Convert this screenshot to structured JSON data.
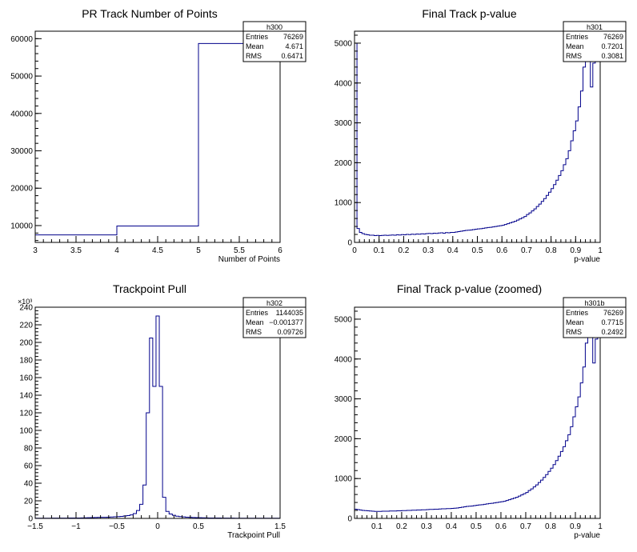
{
  "chart_data": [
    {
      "type": "histogram",
      "title": "PR Track Number of Points",
      "xlabel": "Number of Points",
      "ylabel": "",
      "xlim": [
        3,
        6
      ],
      "ylim": [
        5500,
        62000
      ],
      "xticks": [
        3,
        3.5,
        4,
        4.5,
        5,
        5.5,
        6
      ],
      "xtick_labels": [
        "3",
        "3.5",
        "4",
        "4.5",
        "5",
        "5.5",
        "6"
      ],
      "yticks": [
        10000,
        20000,
        30000,
        40000,
        50000,
        60000
      ],
      "ytick_labels": [
        "10000",
        "20000",
        "30000",
        "40000",
        "50000",
        "60000"
      ],
      "y_exponent_label": "",
      "bin_edges": [
        3,
        4,
        5,
        6
      ],
      "values": [
        7500,
        9900,
        58700
      ],
      "stats": {
        "name": "h300",
        "entries_label": "Entries",
        "entries": "76269",
        "mean_label": "Mean",
        "mean": "4.671",
        "rms_label": "RMS",
        "rms": "0.6471"
      },
      "color": "#00008b"
    },
    {
      "type": "histogram",
      "title": "Final Track p-value",
      "xlabel": "p-value",
      "ylabel": "",
      "xlim": [
        0,
        1
      ],
      "ylim": [
        0,
        5300
      ],
      "xticks": [
        0,
        0.1,
        0.2,
        0.3,
        0.4,
        0.5,
        0.6,
        0.7,
        0.8,
        0.9,
        1
      ],
      "xtick_labels": [
        "0",
        "0.1",
        "0.2",
        "0.3",
        "0.4",
        "0.5",
        "0.6",
        "0.7",
        "0.8",
        "0.9",
        "1"
      ],
      "yticks": [
        0,
        1000,
        2000,
        3000,
        4000,
        5000
      ],
      "ytick_labels": [
        "0",
        "1000",
        "2000",
        "3000",
        "4000",
        "5000"
      ],
      "y_exponent_label": "",
      "bin_edges": [
        0,
        0.01,
        0.02,
        0.03,
        0.04,
        0.05,
        0.06,
        0.07,
        0.08,
        0.09,
        0.1,
        0.11,
        0.12,
        0.13,
        0.14,
        0.15,
        0.16,
        0.17,
        0.18,
        0.19,
        0.2,
        0.21,
        0.22,
        0.23,
        0.24,
        0.25,
        0.26,
        0.27,
        0.28,
        0.29,
        0.3,
        0.31,
        0.32,
        0.33,
        0.34,
        0.35,
        0.36,
        0.37,
        0.38,
        0.39,
        0.4,
        0.41,
        0.42,
        0.43,
        0.44,
        0.45,
        0.46,
        0.47,
        0.48,
        0.49,
        0.5,
        0.51,
        0.52,
        0.53,
        0.54,
        0.55,
        0.56,
        0.57,
        0.58,
        0.59,
        0.6,
        0.61,
        0.62,
        0.63,
        0.64,
        0.65,
        0.66,
        0.67,
        0.68,
        0.69,
        0.7,
        0.71,
        0.72,
        0.73,
        0.74,
        0.75,
        0.76,
        0.77,
        0.78,
        0.79,
        0.8,
        0.81,
        0.82,
        0.83,
        0.84,
        0.85,
        0.86,
        0.87,
        0.88,
        0.89,
        0.9,
        0.91,
        0.92,
        0.93,
        0.94,
        0.95,
        0.96,
        0.97,
        0.98,
        0.99,
        1
      ],
      "values": [
        5000,
        350,
        250,
        220,
        200,
        190,
        180,
        180,
        170,
        175,
        170,
        175,
        180,
        175,
        180,
        185,
        180,
        190,
        185,
        195,
        190,
        200,
        195,
        205,
        200,
        210,
        205,
        215,
        210,
        220,
        225,
        220,
        230,
        225,
        235,
        240,
        230,
        245,
        240,
        250,
        250,
        260,
        270,
        280,
        290,
        300,
        305,
        310,
        320,
        330,
        340,
        345,
        355,
        365,
        375,
        380,
        390,
        400,
        410,
        420,
        430,
        450,
        470,
        490,
        510,
        530,
        560,
        590,
        620,
        650,
        700,
        740,
        790,
        840,
        900,
        960,
        1030,
        1100,
        1180,
        1260,
        1350,
        1450,
        1560,
        1680,
        1800,
        1950,
        2100,
        2300,
        2550,
        2800,
        3050,
        3400,
        3800,
        4400,
        5000,
        5300,
        3900,
        4500,
        5300,
        5300
      ],
      "stats": {
        "name": "h301",
        "entries_label": "Entries",
        "entries": "76269",
        "mean_label": "Mean",
        "mean": "0.7201",
        "rms_label": "RMS",
        "rms": "0.3081"
      },
      "color": "#00008b"
    },
    {
      "type": "histogram",
      "title": "Trackpoint Pull",
      "xlabel": "Trackpoint Pull",
      "ylabel": "",
      "xlim": [
        -1.5,
        1.5
      ],
      "ylim": [
        0,
        240000
      ],
      "xticks": [
        -1.5,
        -1,
        -0.5,
        0,
        0.5,
        1,
        1.5
      ],
      "xtick_labels": [
        "−1.5",
        "−1",
        "−0.5",
        "0",
        "0.5",
        "1",
        "1.5"
      ],
      "yticks": [
        0,
        20000,
        40000,
        60000,
        80000,
        100000,
        120000,
        140000,
        160000,
        180000,
        200000,
        220000,
        240000
      ],
      "ytick_labels": [
        "0",
        "20",
        "40",
        "60",
        "80",
        "100",
        "120",
        "140",
        "160",
        "180",
        "200",
        "220",
        "240"
      ],
      "y_exponent_label": "×10³",
      "bin_edges": [
        -1.5,
        -1.46,
        -1.42,
        -1.38,
        -1.34,
        -1.3,
        -1.26,
        -1.22,
        -1.18,
        -1.14,
        -1.1,
        -1.06,
        -1.02,
        -0.98,
        -0.94,
        -0.9,
        -0.86,
        -0.82,
        -0.78,
        -0.74,
        -0.7,
        -0.66,
        -0.62,
        -0.58,
        -0.54,
        -0.5,
        -0.46,
        -0.42,
        -0.38,
        -0.34,
        -0.3,
        -0.26,
        -0.22,
        -0.18,
        -0.14,
        -0.1,
        -0.06,
        -0.02,
        0.02,
        0.06,
        0.1,
        0.14,
        0.18,
        0.22,
        0.26,
        0.3,
        0.34,
        0.38,
        0.42,
        0.46,
        0.5,
        0.54,
        0.58,
        0.62,
        0.66,
        0.7,
        0.74,
        0.78,
        0.82,
        0.86,
        0.9,
        0.94,
        0.98,
        1.02,
        1.06,
        1.1,
        1.14,
        1.18,
        1.22,
        1.26,
        1.3,
        1.34,
        1.38,
        1.42,
        1.46,
        1.5
      ],
      "values": [
        200,
        200,
        200,
        200,
        200,
        300,
        300,
        300,
        300,
        300,
        400,
        400,
        500,
        500,
        600,
        700,
        800,
        900,
        1000,
        1100,
        1200,
        1300,
        1400,
        1600,
        1800,
        2000,
        2300,
        2700,
        3200,
        4000,
        5500,
        9000,
        16000,
        38000,
        120000,
        205000,
        150000,
        230000,
        150000,
        24000,
        8000,
        5000,
        3500,
        2500,
        2000,
        1700,
        1400,
        1200,
        1000,
        900,
        800,
        700,
        600,
        500,
        500,
        400,
        400,
        300,
        300,
        300,
        300,
        200,
        200,
        200,
        200,
        200,
        200,
        200,
        200,
        200,
        200,
        200,
        200,
        200,
        200
      ],
      "stats": {
        "name": "h302",
        "entries_label": "Entries",
        "entries": "1144035",
        "mean_label": "Mean",
        "mean": "−0.001377",
        "rms_label": "RMS",
        "rms": "0.09726"
      },
      "color": "#00008b"
    },
    {
      "type": "histogram",
      "title": "Final Track p-value (zoomed)",
      "xlabel": "p-value",
      "ylabel": "",
      "xlim": [
        0.01,
        1
      ],
      "ylim": [
        0,
        5300
      ],
      "xticks": [
        0.1,
        0.2,
        0.3,
        0.4,
        0.5,
        0.6,
        0.7,
        0.8,
        0.9,
        1
      ],
      "xtick_labels": [
        "0.1",
        "0.2",
        "0.3",
        "0.4",
        "0.5",
        "0.6",
        "0.7",
        "0.8",
        "0.9",
        "1"
      ],
      "yticks": [
        0,
        1000,
        2000,
        3000,
        4000,
        5000
      ],
      "ytick_labels": [
        "0",
        "1000",
        "2000",
        "3000",
        "4000",
        "5000"
      ],
      "y_exponent_label": "",
      "bin_edges": [
        0.01,
        0.02,
        0.03,
        0.04,
        0.05,
        0.06,
        0.07,
        0.08,
        0.09,
        0.1,
        0.11,
        0.12,
        0.13,
        0.14,
        0.15,
        0.16,
        0.17,
        0.18,
        0.19,
        0.2,
        0.21,
        0.22,
        0.23,
        0.24,
        0.25,
        0.26,
        0.27,
        0.28,
        0.29,
        0.3,
        0.31,
        0.32,
        0.33,
        0.34,
        0.35,
        0.36,
        0.37,
        0.38,
        0.39,
        0.4,
        0.41,
        0.42,
        0.43,
        0.44,
        0.45,
        0.46,
        0.47,
        0.48,
        0.49,
        0.5,
        0.51,
        0.52,
        0.53,
        0.54,
        0.55,
        0.56,
        0.57,
        0.58,
        0.59,
        0.6,
        0.61,
        0.62,
        0.63,
        0.64,
        0.65,
        0.66,
        0.67,
        0.68,
        0.69,
        0.7,
        0.71,
        0.72,
        0.73,
        0.74,
        0.75,
        0.76,
        0.77,
        0.78,
        0.79,
        0.8,
        0.81,
        0.82,
        0.83,
        0.84,
        0.85,
        0.86,
        0.87,
        0.88,
        0.89,
        0.9,
        0.91,
        0.92,
        0.93,
        0.94,
        0.95,
        0.96,
        0.97,
        0.98,
        0.99,
        1
      ],
      "values": [
        230,
        220,
        210,
        200,
        195,
        190,
        185,
        180,
        175,
        175,
        175,
        180,
        180,
        180,
        185,
        185,
        185,
        190,
        190,
        195,
        195,
        200,
        200,
        205,
        205,
        210,
        210,
        215,
        215,
        220,
        225,
        225,
        230,
        230,
        235,
        240,
        240,
        245,
        245,
        250,
        255,
        260,
        270,
        280,
        290,
        300,
        305,
        310,
        320,
        330,
        340,
        345,
        355,
        365,
        375,
        380,
        390,
        400,
        410,
        420,
        430,
        450,
        470,
        490,
        510,
        530,
        560,
        590,
        620,
        650,
        700,
        740,
        790,
        840,
        900,
        960,
        1030,
        1100,
        1180,
        1260,
        1350,
        1450,
        1560,
        1680,
        1800,
        1950,
        2100,
        2300,
        2550,
        2800,
        3050,
        3400,
        3800,
        4400,
        5000,
        5300,
        3900,
        4500,
        5300
      ],
      "stats": {
        "name": "h301b",
        "entries_label": "Entries",
        "entries": "76269",
        "mean_label": "Mean",
        "mean": "0.7715",
        "rms_label": "RMS",
        "rms": "0.2492"
      },
      "color": "#00008b"
    }
  ]
}
